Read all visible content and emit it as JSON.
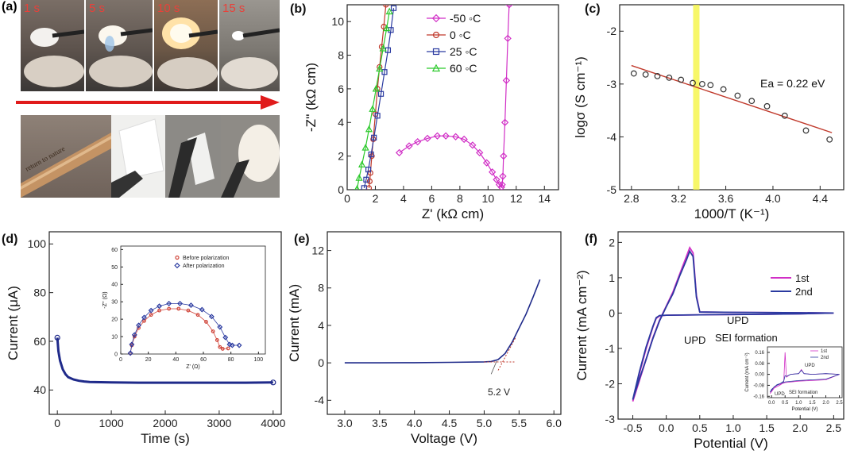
{
  "panel_a": {
    "label": "(a)",
    "times": [
      "1 s",
      "5 s",
      "10 s",
      "15 s"
    ],
    "tube_text": "return to nature"
  },
  "chart_data": [
    {
      "panel": "(b)",
      "type": "scatter",
      "xlabel": "Z' (kΩ cm)",
      "ylabel": "-Z'' (kΩ cm)",
      "xlim": [
        0,
        15
      ],
      "ylim": [
        0,
        11
      ],
      "xticks": [
        0,
        2,
        4,
        6,
        8,
        10,
        12,
        14
      ],
      "yticks": [
        0,
        2,
        4,
        6,
        8,
        10
      ],
      "legend": "top-center",
      "series": [
        {
          "name": "-50 ◦C",
          "color": "#d12fc6",
          "marker": "diamond",
          "x": [
            3.7,
            4.4,
            5.0,
            5.7,
            6.4,
            7.0,
            7.7,
            8.3,
            8.9,
            9.4,
            9.9,
            10.3,
            10.6,
            10.8,
            10.95,
            11.0,
            11.05,
            11.1,
            11.2,
            11.3,
            11.4,
            11.5
          ],
          "y": [
            2.2,
            2.6,
            2.85,
            3.05,
            3.2,
            3.2,
            3.15,
            3.0,
            2.65,
            2.2,
            1.6,
            1.05,
            0.6,
            0.3,
            0.15,
            0.3,
            0.8,
            2.0,
            4.0,
            6.5,
            9.0,
            11.0
          ]
        },
        {
          "name": "0 ◦C",
          "color": "#c0392b",
          "marker": "circle",
          "x": [
            1.55,
            1.6,
            1.65,
            1.75,
            1.85,
            2.0,
            2.15,
            2.3,
            2.45,
            2.6,
            2.75
          ],
          "y": [
            0.1,
            0.5,
            1.0,
            2.0,
            3.0,
            4.5,
            6.0,
            7.3,
            8.5,
            9.7,
            11.0
          ]
        },
        {
          "name": "25 ◦C",
          "color": "#2a3aa0",
          "marker": "square",
          "x": [
            1.2,
            1.35,
            1.5,
            1.7,
            1.9,
            2.15,
            2.4,
            2.65,
            2.9,
            3.1,
            3.3
          ],
          "y": [
            0.1,
            0.6,
            1.2,
            2.1,
            3.1,
            4.4,
            5.7,
            7.0,
            8.3,
            9.5,
            10.8
          ]
        },
        {
          "name": "60 ◦C",
          "color": "#2bc92b",
          "marker": "triangle",
          "x": [
            0.7,
            0.85,
            1.05,
            1.3,
            1.55,
            1.8,
            2.05,
            2.3,
            2.55,
            2.8,
            3.0
          ],
          "y": [
            0.05,
            0.7,
            1.5,
            2.5,
            3.6,
            4.8,
            6.0,
            7.2,
            8.4,
            9.6,
            10.6
          ]
        }
      ]
    },
    {
      "panel": "(c)",
      "type": "scatter",
      "xlabel": "1000/T (K⁻¹)",
      "ylabel": "logσ (S cm⁻¹)",
      "xlim": [
        2.7,
        4.6
      ],
      "ylim": [
        -5,
        -1.5
      ],
      "xticks": [
        2.8,
        3.2,
        3.6,
        4.0,
        4.4
      ],
      "xtick_labels": [
        "2.8",
        "3.2",
        "3.6",
        "4.0",
        "4.4"
      ],
      "yticks": [
        -5,
        -4,
        -3,
        -2
      ],
      "annotation": "Ea = 0.22 eV",
      "highlight_x": 3.35,
      "points": {
        "x": [
          2.82,
          2.92,
          3.02,
          3.12,
          3.22,
          3.32,
          3.4,
          3.47,
          3.58,
          3.7,
          3.82,
          3.95,
          4.1,
          4.28,
          4.48
        ],
        "y": [
          -2.8,
          -2.82,
          -2.85,
          -2.88,
          -2.92,
          -2.98,
          -3.0,
          -3.02,
          -3.1,
          -3.22,
          -3.32,
          -3.42,
          -3.6,
          -3.88,
          -4.05
        ]
      },
      "fit": {
        "x": [
          2.8,
          4.5
        ],
        "y": [
          -2.65,
          -3.92
        ]
      }
    },
    {
      "panel": "(d)",
      "type": "line",
      "xlabel": "Time (s)",
      "ylabel": "Current (μA)",
      "xlim": [
        -150,
        4150
      ],
      "ylim": [
        30,
        105
      ],
      "xticks": [
        0,
        1000,
        2000,
        3000,
        4000
      ],
      "yticks": [
        40,
        60,
        80,
        100
      ],
      "series": [
        {
          "x": [
            0,
            20,
            50,
            100,
            150,
            200,
            300,
            400,
            500,
            600,
            800,
            1000,
            1500,
            2000,
            2500,
            3000,
            3500,
            4000
          ],
          "y": [
            61.5,
            56,
            52,
            48.5,
            46.5,
            45.3,
            44.3,
            43.8,
            43.5,
            43.3,
            43.2,
            43.1,
            43.0,
            43.0,
            43.0,
            43.0,
            43.0,
            43.1
          ]
        }
      ],
      "inset": {
        "xlabel": "Z' (Ω)",
        "ylabel": "-Z'' (Ω)",
        "xlim": [
          0,
          105
        ],
        "ylim": [
          0,
          62
        ],
        "xticks": [
          0,
          20,
          40,
          60,
          80,
          100
        ],
        "yticks": [
          0,
          10,
          20,
          30,
          40,
          50,
          60
        ],
        "series": [
          {
            "name": "Before polarization",
            "color": "#d0453a",
            "x": [
              7,
              8,
              10,
              13,
              17,
              22,
              28,
              35,
              42,
              49,
              56,
              62,
              67,
              70,
              72,
              74,
              78
            ],
            "y": [
              0.5,
              5,
              10,
              15,
              19,
              22.5,
              25,
              26,
              26,
              25,
              22.5,
              18.5,
              13,
              8,
              4,
              3,
              3.2
            ]
          },
          {
            "name": "After polarization",
            "color": "#2a3aa0",
            "x": [
              7,
              8,
              10,
              13,
              17,
              22,
              28,
              35,
              43,
              51,
              59,
              66,
              72,
              76,
              79,
              81,
              86
            ],
            "y": [
              0.5,
              5.5,
              11,
              16.5,
              21,
              25,
              27.5,
              29,
              29,
              28,
              25.5,
              21.5,
              15.5,
              9.5,
              5.5,
              5,
              5
            ]
          }
        ]
      }
    },
    {
      "panel": "(e)",
      "type": "line",
      "xlabel": "Voltage (V)",
      "ylabel": "Current (mA)",
      "xlim": [
        2.75,
        6.1
      ],
      "ylim": [
        -5.5,
        14
      ],
      "xticks": [
        3.0,
        3.5,
        4.0,
        4.5,
        5.0,
        5.5,
        6.0
      ],
      "xtick_labels": [
        "3.0",
        "3.5",
        "4.0",
        "4.5",
        "5.0",
        "5.5",
        "6.0"
      ],
      "yticks": [
        -4,
        0,
        4,
        8,
        12
      ],
      "annotation": "5.2 V",
      "series": [
        {
          "x": [
            3.0,
            3.5,
            4.0,
            4.5,
            5.0,
            5.1,
            5.2,
            5.3,
            5.4,
            5.5,
            5.6,
            5.7,
            5.8
          ],
          "y": [
            0,
            0,
            0.02,
            0.05,
            0.1,
            0.15,
            0.35,
            1.0,
            2.2,
            3.7,
            5.2,
            7.0,
            8.9
          ]
        }
      ]
    },
    {
      "panel": "(f)",
      "type": "line",
      "xlabel": "Potential (V)",
      "ylabel": "Current (mA cm⁻²)",
      "xlim": [
        -0.72,
        2.65
      ],
      "ylim": [
        -3,
        2.3
      ],
      "xticks": [
        -0.5,
        0.0,
        0.5,
        1.0,
        1.5,
        2.0,
        2.5
      ],
      "xtick_labels": [
        "-0.5",
        "0.0",
        "0.5",
        "1.0",
        "1.5",
        "2.0",
        "2.5"
      ],
      "yticks": [
        -3,
        -2,
        -1,
        0,
        1,
        2
      ],
      "legend": "top-right",
      "annotations": [
        "UPD",
        "UPD",
        "SEI formation"
      ],
      "series": [
        {
          "name": "1st",
          "color": "#d12fc6",
          "x": [
            -0.5,
            -0.4,
            -0.3,
            -0.2,
            -0.15,
            -0.1,
            0.0,
            0.5,
            1.0,
            1.5,
            2.0,
            2.5,
            2.0,
            1.0,
            0.5,
            0.45,
            0.4,
            0.35,
            0.3,
            0.2,
            0.1,
            0.0,
            -0.1,
            -0.2,
            -0.3,
            -0.4,
            -0.5
          ],
          "y": [
            -2.5,
            -1.7,
            -1.0,
            -0.4,
            -0.15,
            -0.08,
            -0.06,
            -0.05,
            -0.04,
            -0.03,
            -0.02,
            0.0,
            0.01,
            0.02,
            0.03,
            0.5,
            1.7,
            1.85,
            1.6,
            1.1,
            0.6,
            0.2,
            -0.2,
            -0.7,
            -1.3,
            -1.9,
            -2.5
          ]
        },
        {
          "name": "2nd",
          "color": "#2a3aa0",
          "x": [
            -0.5,
            -0.4,
            -0.3,
            -0.2,
            -0.15,
            -0.1,
            0.0,
            0.5,
            1.0,
            1.5,
            2.0,
            2.5,
            2.0,
            1.0,
            0.5,
            0.45,
            0.4,
            0.35,
            0.3,
            0.2,
            0.1,
            0.0,
            -0.1,
            -0.2,
            -0.3,
            -0.4,
            -0.5
          ],
          "y": [
            -2.45,
            -1.65,
            -0.95,
            -0.38,
            -0.13,
            -0.07,
            -0.06,
            -0.05,
            -0.04,
            -0.03,
            -0.02,
            0.0,
            0.01,
            0.02,
            0.03,
            0.45,
            1.6,
            1.75,
            1.5,
            1.05,
            0.55,
            0.18,
            -0.22,
            -0.72,
            -1.3,
            -1.85,
            -2.45
          ]
        }
      ],
      "inset": {
        "xlabel": "Potential (V)",
        "ylabel": "Current (mA cm⁻²)",
        "xlim": [
          -0.15,
          2.6
        ],
        "ylim": [
          -0.17,
          0.2
        ],
        "xticks": [
          0.0,
          0.5,
          1.0,
          1.5,
          2.0,
          2.5
        ],
        "xtick_labels": [
          "0.0",
          "0.5",
          "1.0",
          "1.5",
          "2.0",
          "2.5"
        ],
        "yticks": [
          -0.16,
          -0.08,
          0.0,
          0.08,
          0.16
        ],
        "ytick_labels": [
          "-0.16",
          "-0.08",
          "0.00",
          "0.08",
          "0.16"
        ],
        "annotations": [
          "UPD",
          "UPD",
          "SEI formation"
        ],
        "series": [
          {
            "name": "1st",
            "color": "#d12fc6",
            "x": [
              -0.05,
              0.1,
              0.3,
              0.45,
              0.5,
              0.55,
              0.7,
              1.0,
              1.1,
              1.2,
              1.5,
              2.0,
              2.5,
              2.0,
              1.5,
              1.0,
              0.5,
              0.2,
              0.0,
              -0.05
            ],
            "y": [
              -0.14,
              -0.1,
              -0.08,
              -0.06,
              0.16,
              -0.02,
              0.0,
              0.005,
              0.035,
              0.005,
              0.0,
              0.005,
              0.0,
              -0.04,
              -0.045,
              -0.05,
              -0.06,
              -0.08,
              -0.12,
              -0.14
            ]
          },
          {
            "name": "2nd",
            "color": "#2a3aa0",
            "x": [
              -0.05,
              0.1,
              0.3,
              0.45,
              0.5,
              0.55,
              0.7,
              1.0,
              1.1,
              1.2,
              1.5,
              2.0,
              2.5,
              2.0,
              1.5,
              1.0,
              0.5,
              0.2,
              0.0,
              -0.05
            ],
            "y": [
              -0.13,
              -0.09,
              -0.07,
              -0.05,
              -0.01,
              -0.015,
              0.0,
              0.005,
              0.03,
              0.005,
              0.0,
              0.005,
              0.0,
              -0.035,
              -0.04,
              -0.045,
              -0.055,
              -0.075,
              -0.11,
              -0.13
            ]
          }
        ]
      }
    }
  ]
}
